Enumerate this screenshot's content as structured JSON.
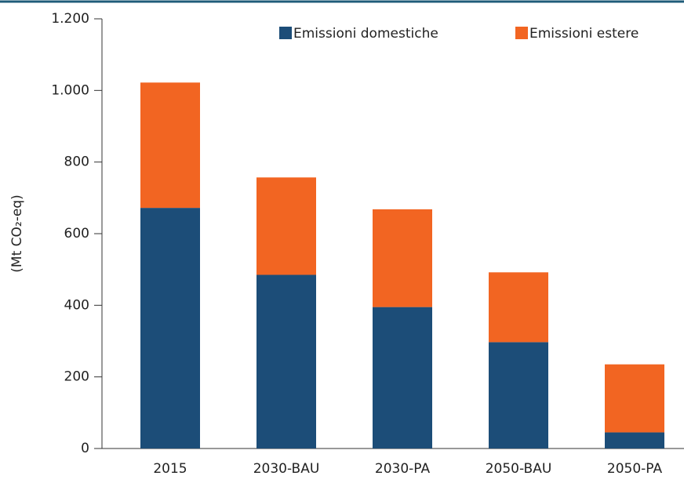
{
  "chart_data": {
    "type": "stacked_bar",
    "y_label": "(Mt CO₂-eq)",
    "categories": [
      "2015",
      "2030-BAU",
      "2030-PA",
      "2050-BAU",
      "2050-PA"
    ],
    "series": [
      {
        "name": "Emissioni domestiche",
        "color": "#1c4d78",
        "values": [
          672,
          485,
          395,
          297,
          45
        ]
      },
      {
        "name": "Emissioni estere",
        "color": "#f26522",
        "values": [
          350,
          272,
          273,
          195,
          190
        ]
      }
    ],
    "ylim": [
      0,
      1200
    ],
    "yticks": [
      0,
      200,
      400,
      600,
      800,
      {
        "value": 1000,
        "label": "1.000"
      },
      {
        "value": 1200,
        "label": "1.200"
      }
    ],
    "legend": "top-right"
  }
}
